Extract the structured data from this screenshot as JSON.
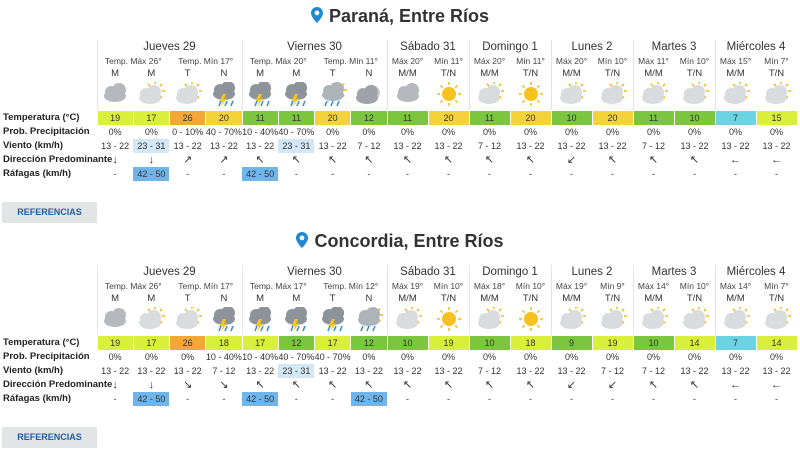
{
  "sections": [
    {
      "location": "Paraná, Entre Ríos",
      "button": "REFERENCIAS",
      "row_labels": [
        "Temperatura (°C)",
        "Prob. Precipitación",
        "Viento (km/h)",
        "Dirección Predominante",
        "Ráfagas (km/h)"
      ],
      "days": [
        {
          "name": "Jueves 29",
          "max": "Temp. Máx 26°",
          "min": "Temp. Mín 17°",
          "periods": [
            "M",
            "M",
            "T",
            "N"
          ],
          "temperature": [
            19,
            17,
            26,
            20
          ],
          "precipitation": [
            "0%",
            "0%",
            "0 - 10%",
            "40 - 70%"
          ],
          "wind": [
            "13 - 22",
            "23 - 31",
            "13 - 22",
            "13 - 22"
          ],
          "direction": [
            "↓",
            "↓",
            "↗",
            "↗"
          ],
          "gusts": [
            "-",
            "42 - 50",
            "-",
            "-"
          ]
        },
        {
          "name": "Viernes 30",
          "max": "Temp. Máx 20°",
          "min": "Temp. Mín 11°",
          "periods": [
            "M",
            "M",
            "T",
            "N"
          ],
          "temperature": [
            11,
            11,
            20,
            12
          ],
          "precipitation": [
            "10 - 40%",
            "40 - 70%",
            "0%",
            "0%"
          ],
          "wind": [
            "13 - 22",
            "23 - 31",
            "13 - 22",
            "7 - 12"
          ],
          "direction": [
            "↖",
            "↖",
            "↖",
            "↖"
          ],
          "gusts": [
            "42 - 50",
            "-",
            "-",
            "-"
          ]
        },
        {
          "name": "Sábado 31",
          "max": "Máx 20°",
          "min": "Mín 11°",
          "periods": [
            "M/M",
            "T/N"
          ],
          "temperature": [
            11,
            20
          ],
          "precipitation": [
            "0%",
            "0%"
          ],
          "wind": [
            "13 - 22",
            "13 - 22"
          ],
          "direction": [
            "↖",
            "↖"
          ],
          "gusts": [
            "-",
            "-"
          ]
        },
        {
          "name": "Domingo 1",
          "max": "Máx 20°",
          "min": "Mín 11°",
          "periods": [
            "M/M",
            "T/N"
          ],
          "temperature": [
            11,
            20
          ],
          "precipitation": [
            "0%",
            "0%"
          ],
          "wind": [
            "7 - 12",
            "13 - 22"
          ],
          "direction": [
            "↖",
            "↖"
          ],
          "gusts": [
            "-",
            "-"
          ]
        },
        {
          "name": "Lunes 2",
          "max": "Máx 20°",
          "min": "Mín 10°",
          "periods": [
            "M/M",
            "T/N"
          ],
          "temperature": [
            10,
            20
          ],
          "precipitation": [
            "0%",
            "0%"
          ],
          "wind": [
            "13 - 22",
            "13 - 22"
          ],
          "direction": [
            "↙",
            "↖"
          ],
          "gusts": [
            "-",
            "-"
          ]
        },
        {
          "name": "Martes 3",
          "max": "Máx 11°",
          "min": "Mín 10°",
          "periods": [
            "M/M",
            "T/N"
          ],
          "temperature": [
            11,
            10
          ],
          "precipitation": [
            "0%",
            "0%"
          ],
          "wind": [
            "7 - 12",
            "13 - 22"
          ],
          "direction": [
            "↖",
            "↖"
          ],
          "gusts": [
            "-",
            "-"
          ]
        },
        {
          "name": "Miércoles 4",
          "max": "Máx 15°",
          "min": "Mín 7°",
          "periods": [
            "M/M",
            "T/N"
          ],
          "temperature": [
            7,
            15
          ],
          "precipitation": [
            "0%",
            "0%"
          ],
          "wind": [
            "13 - 22",
            "13 - 22"
          ],
          "direction": [
            "←",
            "←"
          ],
          "gusts": [
            "-",
            "-"
          ]
        }
      ]
    },
    {
      "location": "Concordia, Entre Ríos",
      "button": "REFERENCIAS",
      "row_labels": [
        "Temperatura (°C)",
        "Prob. Precipitación",
        "Viento (km/h)",
        "Dirección Predominante",
        "Ráfagas (km/h)"
      ],
      "days": [
        {
          "name": "Jueves 29",
          "max": "Temp. Máx 26°",
          "min": "Temp. Mín 17°",
          "periods": [
            "M",
            "M",
            "T",
            "N"
          ],
          "temperature": [
            19,
            17,
            26,
            18
          ],
          "precipitation": [
            "0%",
            "0%",
            "0%",
            "10 - 40%"
          ],
          "wind": [
            "13 - 22",
            "13 - 22",
            "13 - 22",
            "7 - 12"
          ],
          "direction": [
            "↓",
            "↓",
            "↘",
            "↘"
          ],
          "gusts": [
            "-",
            "42 - 50",
            "-",
            "-"
          ]
        },
        {
          "name": "Viernes 30",
          "max": "Temp. Máx 17°",
          "min": "Temp. Mín 12°",
          "periods": [
            "M",
            "M",
            "T",
            "N"
          ],
          "temperature": [
            17,
            12,
            17,
            12
          ],
          "precipitation": [
            "10 - 40%",
            "40 - 70%",
            "40 - 70%",
            "0%"
          ],
          "wind": [
            "13 - 22",
            "23 - 31",
            "13 - 22",
            "13 - 22"
          ],
          "direction": [
            "↖",
            "↖",
            "↖",
            "↖"
          ],
          "gusts": [
            "42 - 50",
            "-",
            "-",
            "42 - 50"
          ]
        },
        {
          "name": "Sábado 31",
          "max": "Máx 19°",
          "min": "Mín 10°",
          "periods": [
            "M/M",
            "T/N"
          ],
          "temperature": [
            10,
            19
          ],
          "precipitation": [
            "0%",
            "0%"
          ],
          "wind": [
            "13 - 22",
            "13 - 22"
          ],
          "direction": [
            "↖",
            "↖"
          ],
          "gusts": [
            "-",
            "-"
          ]
        },
        {
          "name": "Domingo 1",
          "max": "Máx 18°",
          "min": "Mín 10°",
          "periods": [
            "M/M",
            "T/N"
          ],
          "temperature": [
            10,
            18
          ],
          "precipitation": [
            "0%",
            "0%"
          ],
          "wind": [
            "7 - 12",
            "13 - 22"
          ],
          "direction": [
            "↖",
            "↖"
          ],
          "gusts": [
            "-",
            "-"
          ]
        },
        {
          "name": "Lunes 2",
          "max": "Máx 19°",
          "min": "Mín 9°",
          "periods": [
            "M/M",
            "T/N"
          ],
          "temperature": [
            9,
            19
          ],
          "precipitation": [
            "0%",
            "0%"
          ],
          "wind": [
            "13 - 22",
            "7 - 12"
          ],
          "direction": [
            "↙",
            "↙"
          ],
          "gusts": [
            "-",
            "-"
          ]
        },
        {
          "name": "Martes 3",
          "max": "Máx 14°",
          "min": "Mín 10°",
          "periods": [
            "M/M",
            "T/N"
          ],
          "temperature": [
            10,
            14
          ],
          "precipitation": [
            "0%",
            "0%"
          ],
          "wind": [
            "7 - 12",
            "13 - 22"
          ],
          "direction": [
            "↖",
            "↖"
          ],
          "gusts": [
            "-",
            "-"
          ]
        },
        {
          "name": "Miércoles 4",
          "max": "Máx 14°",
          "min": "Mín 7°",
          "periods": [
            "M/M",
            "T/N"
          ],
          "temperature": [
            7,
            14
          ],
          "precipitation": [
            "0%",
            "0%"
          ],
          "wind": [
            "13 - 22",
            "13 - 22"
          ],
          "direction": [
            "←",
            "←"
          ],
          "gusts": [
            "-",
            "-"
          ]
        }
      ]
    }
  ]
}
